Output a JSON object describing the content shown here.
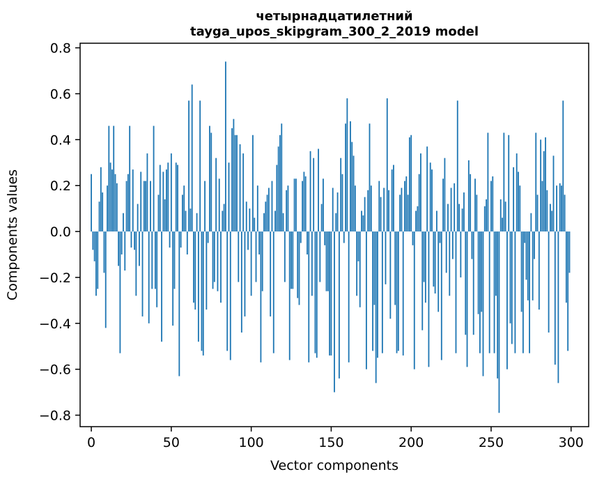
{
  "figure": {
    "background": "#ffffff",
    "text_color": "#000000"
  },
  "chart_data": {
    "type": "bar",
    "title": "четырнадцатилетний\ntayga_upos_skipgram_300_2_2019 model",
    "title_line1": "четырнадцатилетний",
    "title_line2": "tayga_upos_skipgram_300_2_2019 model",
    "xlabel": "Vector components",
    "ylabel": "Components values",
    "bar_color": "#1f77b4",
    "grid": false,
    "legend": false,
    "n_components": 300,
    "x_ticks": [
      0,
      50,
      100,
      150,
      200,
      250,
      300
    ],
    "y_ticks": [
      -0.8,
      -0.6,
      -0.4,
      -0.2,
      0.0,
      0.2,
      0.4,
      0.6,
      0.8
    ],
    "xlim": [
      -7,
      311
    ],
    "ylim": [
      -0.85,
      0.82
    ],
    "values": [
      0.25,
      -0.08,
      -0.13,
      -0.28,
      -0.25,
      0.13,
      0.28,
      0.17,
      -0.18,
      -0.42,
      0.2,
      0.46,
      0.3,
      0.27,
      0.46,
      0.25,
      0.21,
      -0.15,
      -0.53,
      -0.1,
      0.08,
      -0.17,
      0.22,
      0.25,
      0.46,
      -0.07,
      0.27,
      -0.08,
      -0.28,
      0.12,
      -0.15,
      0.26,
      -0.37,
      0.22,
      0.22,
      0.34,
      -0.4,
      0.22,
      -0.25,
      0.46,
      -0.25,
      -0.33,
      0.16,
      0.29,
      -0.48,
      0.26,
      0.14,
      0.27,
      0.3,
      -0.07,
      0.34,
      -0.41,
      -0.25,
      0.3,
      0.29,
      -0.63,
      -0.07,
      0.16,
      0.2,
      0.09,
      -0.1,
      0.57,
      0.1,
      0.64,
      -0.31,
      -0.34,
      0.08,
      -0.48,
      0.57,
      -0.52,
      -0.54,
      0.22,
      -0.34,
      -0.05,
      0.46,
      0.43,
      -0.25,
      -0.22,
      0.32,
      -0.26,
      0.23,
      -0.31,
      0.09,
      0.12,
      0.74,
      -0.52,
      0.3,
      -0.56,
      0.45,
      0.49,
      0.42,
      0.42,
      -0.22,
      0.38,
      -0.44,
      0.34,
      -0.37,
      0.13,
      -0.08,
      0.1,
      -0.28,
      0.42,
      0.06,
      -0.22,
      0.2,
      -0.1,
      -0.57,
      -0.26,
      0.08,
      0.13,
      0.16,
      0.19,
      -0.37,
      0.22,
      -0.53,
      0.09,
      0.29,
      0.37,
      0.42,
      0.47,
      0.08,
      -0.22,
      0.18,
      0.2,
      -0.56,
      -0.25,
      -0.25,
      0.23,
      0.23,
      -0.29,
      -0.32,
      -0.05,
      0.22,
      0.26,
      0.24,
      -0.1,
      -0.57,
      0.35,
      -0.28,
      0.32,
      -0.53,
      -0.55,
      0.36,
      -0.22,
      0.12,
      0.23,
      -0.06,
      -0.26,
      -0.26,
      -0.54,
      -0.54,
      0.19,
      -0.7,
      0.08,
      0.17,
      -0.64,
      0.32,
      0.25,
      -0.05,
      0.47,
      0.58,
      -0.57,
      0.48,
      0.39,
      0.33,
      0.2,
      -0.28,
      -0.13,
      -0.33,
      0.09,
      0.07,
      0.15,
      -0.6,
      0.18,
      0.47,
      0.2,
      -0.52,
      -0.32,
      -0.66,
      -0.55,
      0.22,
      0.15,
      -0.53,
      0.19,
      -0.23,
      0.58,
      0.18,
      -0.38,
      0.27,
      0.29,
      -0.32,
      -0.53,
      -0.52,
      0.16,
      0.19,
      -0.54,
      0.22,
      0.24,
      0.16,
      0.41,
      0.42,
      -0.06,
      -0.6,
      0.09,
      0.11,
      0.25,
      0.34,
      -0.43,
      -0.22,
      -0.31,
      0.37,
      -0.59,
      0.3,
      0.27,
      -0.24,
      -0.27,
      0.09,
      -0.35,
      -0.05,
      -0.56,
      0.23,
      0.32,
      -0.18,
      0.12,
      -0.28,
      0.19,
      -0.12,
      0.21,
      -0.53,
      0.57,
      0.12,
      -0.2,
      0.1,
      0.17,
      -0.45,
      -0.59,
      0.31,
      0.25,
      -0.12,
      -0.45,
      0.23,
      0.16,
      -0.36,
      -0.53,
      -0.35,
      -0.63,
      0.11,
      0.14,
      0.43,
      -0.53,
      0.22,
      0.24,
      -0.53,
      -0.28,
      -0.64,
      -0.79,
      0.14,
      0.06,
      0.43,
      0.13,
      -0.6,
      0.42,
      -0.4,
      -0.49,
      0.28,
      -0.53,
      0.34,
      0.26,
      0.2,
      -0.35,
      -0.53,
      -0.05,
      -0.21,
      -0.3,
      -0.53,
      0.08,
      -0.3,
      -0.12,
      0.43,
      0.16,
      -0.34,
      0.4,
      0.22,
      0.35,
      0.41,
      0.18,
      -0.44,
      0.12,
      0.09,
      0.33,
      -0.58,
      0.2,
      -0.66,
      0.21,
      0.2,
      0.57,
      0.16,
      -0.31,
      -0.52,
      -0.18
    ]
  }
}
